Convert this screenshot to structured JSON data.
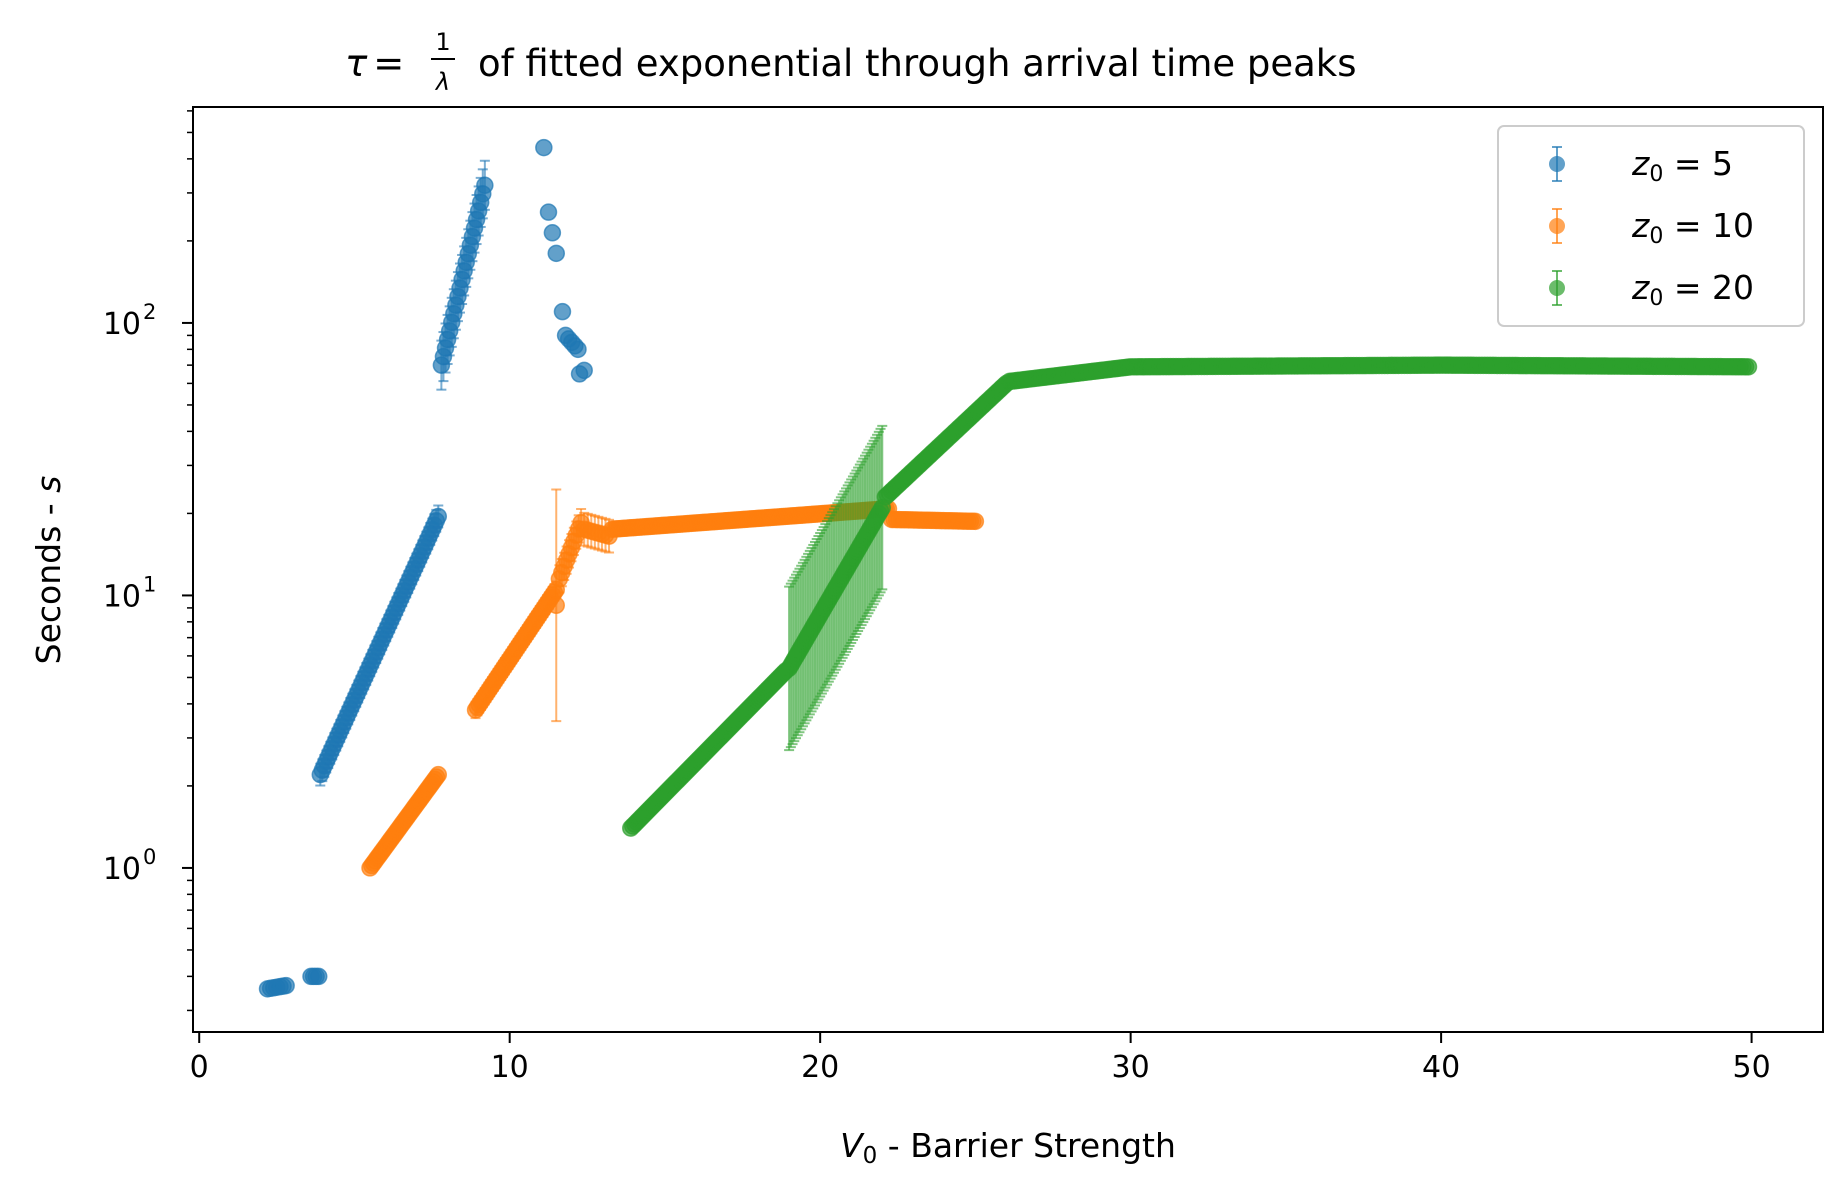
{
  "chart_data": {
    "type": "scatter",
    "title": "τ = 1/λ of fitted exponential through arrival time peaks",
    "title_parts": {
      "lhs": "τ",
      "eq": "=",
      "num": "1",
      "den": "λ",
      "rest": "of fitted exponential through arrival time peaks"
    },
    "xlabel": "V0 - Barrier Strength",
    "xlabel_parts": {
      "sym": "V",
      "sub": "0",
      "rest": " - Barrier Strength"
    },
    "ylabel": "Seconds - s",
    "ylabel_parts": {
      "text": "Seconds - ",
      "italic": "s"
    },
    "y_scale": "log",
    "xlim": [
      -0.2,
      52.3
    ],
    "ylim": [
      0.25,
      620
    ],
    "xticks": [
      0,
      10,
      20,
      30,
      40,
      50
    ],
    "xtick_labels": [
      "0",
      "10",
      "20",
      "30",
      "40",
      "50"
    ],
    "yticks": [
      1,
      10,
      100
    ],
    "ytick_labels": [
      {
        "base": "10",
        "exp": "0"
      },
      {
        "base": "10",
        "exp": "1"
      },
      {
        "base": "10",
        "exp": "2"
      }
    ],
    "grid": false,
    "legend_position": "top-right",
    "series": [
      {
        "name": "z0 = 5",
        "label_parts": {
          "sym": "z",
          "sub": "0",
          "rest": " = 5"
        },
        "color": "#1f77b4",
        "segments": [
          {
            "x0": 2.2,
            "x1": 2.8,
            "y0": 0.36,
            "y1": 0.37,
            "n": 7
          },
          {
            "x0": 3.6,
            "x1": 3.85,
            "y0": 0.4,
            "y1": 0.4,
            "n": 4
          },
          {
            "x0": 3.9,
            "x1": 7.7,
            "y0": 2.2,
            "y1": 19.5,
            "n": 60,
            "err": 0.08
          },
          {
            "x0": 7.8,
            "x1": 9.2,
            "y0": 70,
            "y1": 320,
            "n": 22,
            "err": 0.18
          },
          {
            "x0": 11.1,
            "x1": 11.1,
            "y0": 440,
            "y1": 440,
            "n": 1
          },
          {
            "x0": 11.25,
            "x1": 11.5,
            "y0": 255,
            "y1": 180,
            "n": 3
          },
          {
            "x0": 11.7,
            "x1": 11.7,
            "y0": 110,
            "y1": 110,
            "n": 1
          },
          {
            "x0": 11.8,
            "x1": 12.2,
            "y0": 90,
            "y1": 80,
            "n": 5
          },
          {
            "x0": 12.25,
            "x1": 12.4,
            "y0": 65,
            "y1": 67,
            "n": 2
          }
        ]
      },
      {
        "name": "z0 = 10",
        "label_parts": {
          "sym": "z",
          "sub": "0",
          "rest": " = 10"
        },
        "color": "#ff7f0e",
        "segments": [
          {
            "x0": 5.5,
            "x1": 7.7,
            "y0": 1.0,
            "y1": 2.2,
            "n": 40
          },
          {
            "x0": 8.9,
            "x1": 11.5,
            "y0": 3.8,
            "y1": 10.5,
            "n": 45,
            "err": 0.06
          },
          {
            "x0": 11.5,
            "x1": 11.5,
            "y0": 9.2,
            "y1": 9.2,
            "n": 1,
            "err": 0.85
          },
          {
            "x0": 11.6,
            "x1": 12.3,
            "y0": 11.5,
            "y1": 18.5,
            "n": 10,
            "err": 0.1
          },
          {
            "x0": 12.4,
            "x1": 13.2,
            "y0": 17.5,
            "y1": 16.5,
            "n": 8,
            "err": 0.12
          },
          {
            "x0": 13.3,
            "x1": 22.2,
            "y0": 17.5,
            "y1": 20.8,
            "n": 130
          },
          {
            "x0": 22.3,
            "x1": 25.0,
            "y0": 19.0,
            "y1": 18.7,
            "n": 35
          }
        ]
      },
      {
        "name": "z0 = 20",
        "label_parts": {
          "sym": "z",
          "sub": "0",
          "rest": " = 20"
        },
        "color": "#2ca02c",
        "segments": [
          {
            "x0": 13.9,
            "x1": 18.9,
            "y0": 1.4,
            "y1": 5.3,
            "n": 80
          },
          {
            "x0": 19.0,
            "x1": 22.0,
            "y0": 5.4,
            "y1": 21,
            "n": 55,
            "err": 0.6
          },
          {
            "x0": 22.1,
            "x1": 26.0,
            "y0": 23,
            "y1": 60,
            "n": 60
          },
          {
            "x0": 26.1,
            "x1": 30.0,
            "y0": 61,
            "y1": 69,
            "n": 50
          },
          {
            "x0": 30.1,
            "x1": 40.0,
            "y0": 69,
            "y1": 70,
            "n": 110
          },
          {
            "x0": 40.1,
            "x1": 49.9,
            "y0": 70,
            "y1": 69,
            "n": 110
          }
        ]
      }
    ]
  }
}
